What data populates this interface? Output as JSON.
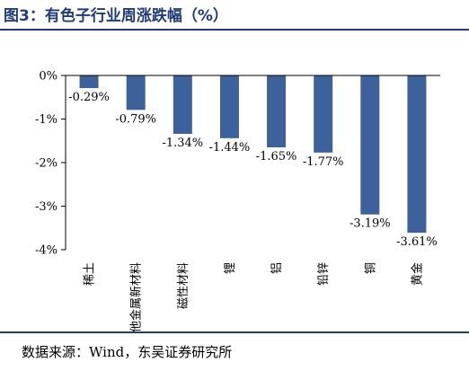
{
  "figure_title": "图3：有色子行业周涨跌幅（%）",
  "source_note": "数据来源：Wind，东吴证券研究所",
  "colors": {
    "bar": "#3d629b",
    "title": "#1f3c78",
    "axis": "#000000"
  },
  "chart_data": {
    "type": "bar",
    "title": "",
    "xlabel": "",
    "ylabel": "",
    "ylim": [
      -4,
      0
    ],
    "yticks": [
      0,
      -1,
      -2,
      -3,
      -4
    ],
    "ytick_labels": [
      "0%",
      "-1%",
      "-2%",
      "-3%",
      "-4%"
    ],
    "grid": false,
    "legend": "none",
    "categories": [
      "稀土",
      "其他金属新材料",
      "磁性材料",
      "锂",
      "铝",
      "铅锌",
      "铜",
      "黄金"
    ],
    "values": [
      -0.29,
      -0.79,
      -1.34,
      -1.44,
      -1.65,
      -1.77,
      -3.19,
      -3.61
    ],
    "data_labels": [
      "-0.29%",
      "-0.79%",
      "-1.34%",
      "-1.44%",
      "-1.65%",
      "-1.77%",
      "-3.19%",
      "-3.61%"
    ]
  }
}
